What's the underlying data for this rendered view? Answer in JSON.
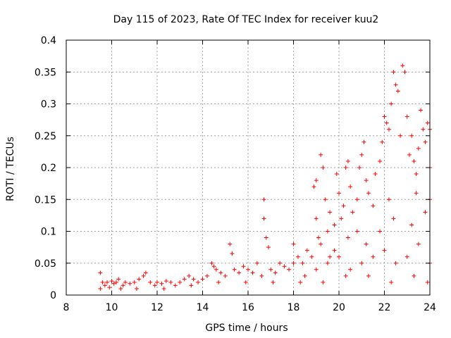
{
  "chart_data": {
    "type": "scatter",
    "title": "Day 115 of 2023, Rate Of TEC Index for receiver kuu2",
    "xlabel": "GPS time / hours",
    "ylabel": "ROTI / TECUs",
    "xlim": [
      8,
      24
    ],
    "ylim": [
      0,
      0.4
    ],
    "x_ticks": [
      8,
      10,
      12,
      14,
      16,
      18,
      20,
      22,
      24
    ],
    "y_ticks": [
      0,
      0.05,
      0.1,
      0.15,
      0.2,
      0.25,
      0.3,
      0.35,
      0.4
    ],
    "x_tick_labels": [
      "8",
      "10",
      "12",
      "14",
      "16",
      "18",
      "20",
      "22",
      "24"
    ],
    "y_tick_labels": [
      "0",
      "0.05",
      "0.1",
      "0.15",
      "0.2",
      "0.25",
      "0.3",
      "0.35",
      "0.4"
    ],
    "grid": true,
    "marker": "plus",
    "series_color": "#ff0000",
    "series": [
      {
        "points": [
          [
            9.5,
            0.035
          ],
          [
            9.5,
            0.01
          ],
          [
            9.6,
            0.02
          ],
          [
            9.7,
            0.015
          ],
          [
            9.8,
            0.02
          ],
          [
            9.9,
            0.012
          ],
          [
            10.0,
            0.022
          ],
          [
            10.1,
            0.018
          ],
          [
            10.2,
            0.02
          ],
          [
            10.3,
            0.025
          ],
          [
            10.5,
            0.015
          ],
          [
            10.6,
            0.02
          ],
          [
            10.8,
            0.018
          ],
          [
            11.0,
            0.02
          ],
          [
            11.2,
            0.025
          ],
          [
            11.4,
            0.03
          ],
          [
            11.5,
            0.035
          ],
          [
            11.7,
            0.02
          ],
          [
            11.9,
            0.015
          ],
          [
            12.0,
            0.02
          ],
          [
            12.2,
            0.018
          ],
          [
            12.4,
            0.022
          ],
          [
            12.6,
            0.02
          ],
          [
            12.8,
            0.015
          ],
          [
            13.0,
            0.02
          ],
          [
            13.2,
            0.025
          ],
          [
            13.4,
            0.03
          ],
          [
            13.6,
            0.025
          ],
          [
            13.8,
            0.02
          ],
          [
            14.0,
            0.025
          ],
          [
            14.2,
            0.03
          ],
          [
            14.4,
            0.05
          ],
          [
            14.5,
            0.045
          ],
          [
            14.6,
            0.04
          ],
          [
            14.8,
            0.035
          ],
          [
            15.0,
            0.03
          ],
          [
            15.2,
            0.08
          ],
          [
            15.3,
            0.065
          ],
          [
            15.4,
            0.04
          ],
          [
            15.6,
            0.035
          ],
          [
            15.8,
            0.045
          ],
          [
            16.0,
            0.04
          ],
          [
            16.2,
            0.035
          ],
          [
            16.4,
            0.05
          ],
          [
            16.6,
            0.03
          ],
          [
            16.7,
            0.15
          ],
          [
            16.7,
            0.12
          ],
          [
            16.8,
            0.09
          ],
          [
            16.9,
            0.075
          ],
          [
            17.0,
            0.04
          ],
          [
            17.2,
            0.035
          ],
          [
            17.4,
            0.05
          ],
          [
            17.6,
            0.045
          ],
          [
            17.8,
            0.04
          ],
          [
            18.0,
            0.05
          ],
          [
            18.0,
            0.08
          ],
          [
            18.2,
            0.06
          ],
          [
            18.4,
            0.05
          ],
          [
            18.6,
            0.07
          ],
          [
            18.8,
            0.06
          ],
          [
            18.9,
            0.17
          ],
          [
            19.0,
            0.18
          ],
          [
            19.0,
            0.12
          ],
          [
            19.1,
            0.09
          ],
          [
            19.2,
            0.22
          ],
          [
            19.3,
            0.2
          ],
          [
            19.4,
            0.15
          ],
          [
            19.5,
            0.1
          ],
          [
            19.6,
            0.13
          ],
          [
            19.8,
            0.11
          ],
          [
            19.9,
            0.19
          ],
          [
            20.0,
            0.16
          ],
          [
            20.1,
            0.12
          ],
          [
            20.2,
            0.14
          ],
          [
            20.3,
            0.2
          ],
          [
            20.4,
            0.21
          ],
          [
            20.5,
            0.17
          ],
          [
            20.6,
            0.13
          ],
          [
            20.8,
            0.15
          ],
          [
            20.9,
            0.2
          ],
          [
            21.0,
            0.22
          ],
          [
            21.1,
            0.24
          ],
          [
            21.2,
            0.18
          ],
          [
            21.3,
            0.16
          ],
          [
            21.5,
            0.14
          ],
          [
            21.6,
            0.19
          ],
          [
            21.8,
            0.21
          ],
          [
            21.9,
            0.24
          ],
          [
            22.0,
            0.28
          ],
          [
            22.1,
            0.27
          ],
          [
            22.2,
            0.26
          ],
          [
            22.3,
            0.3
          ],
          [
            22.4,
            0.35
          ],
          [
            22.5,
            0.33
          ],
          [
            22.6,
            0.32
          ],
          [
            22.7,
            0.25
          ],
          [
            22.8,
            0.36
          ],
          [
            22.9,
            0.35
          ],
          [
            23.0,
            0.28
          ],
          [
            23.1,
            0.22
          ],
          [
            23.2,
            0.25
          ],
          [
            23.3,
            0.21
          ],
          [
            23.4,
            0.19
          ],
          [
            23.5,
            0.23
          ],
          [
            23.6,
            0.29
          ],
          [
            23.7,
            0.26
          ],
          [
            23.8,
            0.24
          ],
          [
            23.9,
            0.27
          ],
          [
            24.0,
            0.26
          ],
          [
            24.0,
            0.2
          ],
          [
            24.0,
            0.15
          ],
          [
            18.5,
            0.03
          ],
          [
            19.0,
            0.04
          ],
          [
            19.5,
            0.05
          ],
          [
            20.0,
            0.06
          ],
          [
            20.5,
            0.04
          ],
          [
            21.0,
            0.05
          ],
          [
            21.5,
            0.06
          ],
          [
            22.0,
            0.07
          ],
          [
            22.5,
            0.05
          ],
          [
            23.0,
            0.06
          ],
          [
            23.5,
            0.08
          ],
          [
            24.0,
            0.05
          ],
          [
            19.2,
            0.08
          ],
          [
            19.8,
            0.07
          ],
          [
            20.4,
            0.09
          ],
          [
            21.2,
            0.08
          ],
          [
            21.8,
            0.1
          ],
          [
            22.4,
            0.12
          ],
          [
            23.2,
            0.11
          ],
          [
            23.8,
            0.13
          ],
          [
            19.6,
            0.06
          ],
          [
            20.8,
            0.1
          ],
          [
            22.2,
            0.15
          ],
          [
            23.4,
            0.16
          ],
          [
            10.4,
            0.01
          ],
          [
            11.1,
            0.01
          ],
          [
            12.3,
            0.01
          ],
          [
            13.5,
            0.015
          ],
          [
            14.7,
            0.02
          ],
          [
            15.9,
            0.02
          ],
          [
            17.1,
            0.02
          ],
          [
            18.3,
            0.02
          ],
          [
            19.3,
            0.02
          ],
          [
            20.3,
            0.03
          ],
          [
            21.3,
            0.03
          ],
          [
            22.3,
            0.02
          ],
          [
            23.3,
            0.03
          ],
          [
            23.9,
            0.02
          ]
        ]
      }
    ]
  }
}
